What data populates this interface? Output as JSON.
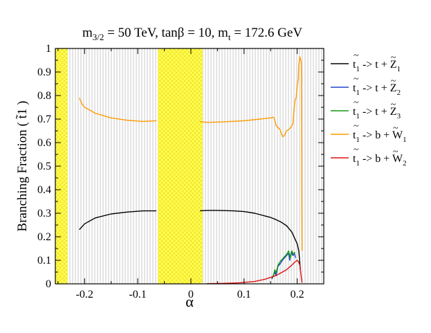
{
  "chart_data": {
    "type": "line",
    "title": {
      "parts": [
        "m",
        "3/2",
        " = 50 TeV, tanβ = 10, m",
        "t",
        " = 172.6 GeV"
      ],
      "full": "m3/2 = 50 TeV, tanβ = 10, mt = 172.6 GeV"
    },
    "xlabel": "α",
    "ylabel": "Branching Fraction ( t̃1 )",
    "xlim": [
      -0.255,
      0.25
    ],
    "ylim": [
      0,
      1
    ],
    "xticks": [
      -0.2,
      -0.1,
      0,
      0.1,
      0.2
    ],
    "xtick_labels": [
      "-0.2",
      "-0.1",
      "0",
      "0.1",
      "0.2"
    ],
    "yticks": [
      0,
      0.1,
      0.2,
      0.3,
      0.4,
      0.5,
      0.6,
      0.7,
      0.8,
      0.9,
      1
    ],
    "ytick_labels": [
      "0",
      "0.1",
      "0.2",
      "0.3",
      "0.4",
      "0.5",
      "0.6",
      "0.7",
      "0.8",
      "0.9",
      "1"
    ],
    "excluded_regions": [
      {
        "name": "excluded-left",
        "x": [
          -0.255,
          -0.232
        ],
        "color": "#ffff66"
      },
      {
        "name": "excluded-center",
        "x": [
          -0.062,
          0.022
        ],
        "color": "#ffff66"
      }
    ],
    "allowed_band_color": "#dcdcdc",
    "series": [
      {
        "name": "t̃1 -> t + Z̃1",
        "legend": {
          "sq": "t",
          "sqsub": "1",
          "mid": " -> t + ",
          "prod": "Z",
          "prodsub": "1"
        },
        "color": "#000000",
        "segments": [
          [
            [
              -0.21,
              0.23
            ],
            [
              -0.2,
              0.255
            ],
            [
              -0.18,
              0.28
            ],
            [
              -0.15,
              0.297
            ],
            [
              -0.12,
              0.305
            ],
            [
              -0.09,
              0.31
            ],
            [
              -0.065,
              0.31
            ]
          ],
          [
            [
              0.017,
              0.31
            ],
            [
              0.03,
              0.312
            ],
            [
              0.05,
              0.312
            ],
            [
              0.08,
              0.31
            ],
            [
              0.1,
              0.307
            ],
            [
              0.12,
              0.3
            ],
            [
              0.14,
              0.288
            ],
            [
              0.15,
              0.282
            ],
            [
              0.16,
              0.273
            ],
            [
              0.17,
              0.262
            ],
            [
              0.18,
              0.247
            ],
            [
              0.19,
              0.22
            ],
            [
              0.195,
              0.195
            ],
            [
              0.2,
              0.17
            ],
            [
              0.203,
              0.14
            ],
            [
              0.205,
              0.09
            ],
            [
              0.206,
              0.06
            ]
          ]
        ]
      },
      {
        "name": "t̃1 -> t + Z̃2",
        "legend": {
          "sq": "t",
          "sqsub": "1",
          "mid": " -> t + ",
          "prod": "Z",
          "prodsub": "2"
        },
        "color": "#2244cc",
        "segments": [
          [
            [
              0.152,
              0.02
            ],
            [
              0.158,
              0.05
            ],
            [
              0.16,
              0.035
            ],
            [
              0.164,
              0.075
            ],
            [
              0.168,
              0.085
            ],
            [
              0.172,
              0.1
            ],
            [
              0.176,
              0.11
            ],
            [
              0.18,
              0.12
            ],
            [
              0.184,
              0.13
            ],
            [
              0.186,
              0.1
            ],
            [
              0.189,
              0.135
            ],
            [
              0.192,
              0.12
            ],
            [
              0.195,
              0.13
            ],
            [
              0.197,
              0.11
            ]
          ]
        ]
      },
      {
        "name": "t̃1 -> t + Z̃3",
        "legend": {
          "sq": "t",
          "sqsub": "1",
          "mid": " -> t + ",
          "prod": "Z",
          "prodsub": "3"
        },
        "color": "#119911",
        "segments": [
          [
            [
              0.154,
              0.025
            ],
            [
              0.158,
              0.06
            ],
            [
              0.16,
              0.045
            ],
            [
              0.164,
              0.08
            ],
            [
              0.168,
              0.095
            ],
            [
              0.172,
              0.105
            ],
            [
              0.176,
              0.115
            ],
            [
              0.18,
              0.125
            ],
            [
              0.184,
              0.14
            ],
            [
              0.187,
              0.11
            ],
            [
              0.19,
              0.14
            ],
            [
              0.193,
              0.125
            ],
            [
              0.196,
              0.135
            ]
          ]
        ]
      },
      {
        "name": "t̃1 -> b + W̃1",
        "legend": {
          "sq": "t",
          "sqsub": "1",
          "mid": " -> b + ",
          "prod": "W",
          "prodsub": "1"
        },
        "color": "#ff9900",
        "segments": [
          [
            [
              -0.21,
              0.79
            ],
            [
              -0.205,
              0.765
            ],
            [
              -0.2,
              0.75
            ],
            [
              -0.18,
              0.725
            ],
            [
              -0.15,
              0.705
            ],
            [
              -0.12,
              0.695
            ],
            [
              -0.09,
              0.69
            ],
            [
              -0.065,
              0.693
            ]
          ],
          [
            [
              0.017,
              0.69
            ],
            [
              0.03,
              0.686
            ],
            [
              0.06,
              0.688
            ],
            [
              0.1,
              0.693
            ],
            [
              0.13,
              0.7
            ],
            [
              0.15,
              0.705
            ],
            [
              0.155,
              0.708
            ],
            [
              0.157,
              0.703
            ],
            [
              0.16,
              0.675
            ],
            [
              0.163,
              0.665
            ],
            [
              0.166,
              0.66
            ],
            [
              0.168,
              0.655
            ],
            [
              0.17,
              0.64
            ],
            [
              0.173,
              0.625
            ],
            [
              0.176,
              0.63
            ],
            [
              0.18,
              0.65
            ],
            [
              0.184,
              0.655
            ],
            [
              0.188,
              0.665
            ],
            [
              0.192,
              0.68
            ],
            [
              0.194,
              0.74
            ],
            [
              0.196,
              0.78
            ],
            [
              0.198,
              0.79
            ],
            [
              0.2,
              0.84
            ],
            [
              0.202,
              0.87
            ],
            [
              0.203,
              0.93
            ],
            [
              0.205,
              0.965
            ],
            [
              0.207,
              0.95
            ],
            [
              0.208,
              0.93
            ],
            [
              0.209,
              0.14
            ]
          ]
        ]
      },
      {
        "name": "t̃1 -> b + W̃2",
        "legend": {
          "sq": "t",
          "sqsub": "1",
          "mid": " -> b + ",
          "prod": "W",
          "prodsub": "2"
        },
        "color": "#dd1111",
        "segments": [
          [
            [
              0.03,
              0.001
            ],
            [
              0.06,
              0.002
            ],
            [
              0.09,
              0.004
            ],
            [
              0.12,
              0.01
            ],
            [
              0.14,
              0.02
            ],
            [
              0.16,
              0.035
            ],
            [
              0.18,
              0.06
            ],
            [
              0.19,
              0.08
            ],
            [
              0.197,
              0.095
            ],
            [
              0.2,
              0.1
            ],
            [
              0.202,
              0.095
            ],
            [
              0.205,
              0.08
            ],
            [
              0.207,
              0.04
            ],
            [
              0.209,
              0.005
            ]
          ]
        ]
      }
    ]
  }
}
